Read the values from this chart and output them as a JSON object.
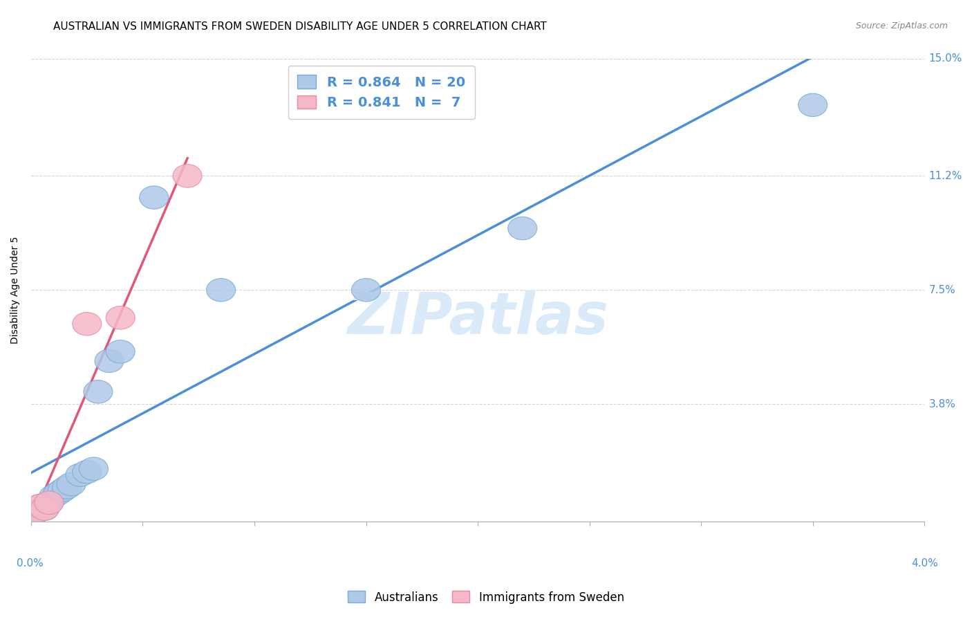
{
  "title": "AUSTRALIAN VS IMMIGRANTS FROM SWEDEN DISABILITY AGE UNDER 5 CORRELATION CHART",
  "source": "Source: ZipAtlas.com",
  "ylabel": "Disability Age Under 5",
  "y_ticks_labels": [
    "",
    "3.8%",
    "7.5%",
    "11.2%",
    "15.0%"
  ],
  "y_ticks_values": [
    0.0,
    3.8,
    7.5,
    11.2,
    15.0
  ],
  "xlim": [
    0.0,
    4.0
  ],
  "ylim": [
    0.0,
    15.0
  ],
  "watermark": "ZIPatlas",
  "legend_entries": [
    {
      "label": "Australians",
      "R": 0.864,
      "N": 20,
      "color": "#a8c4e0"
    },
    {
      "label": "Immigrants from Sweden",
      "R": 0.841,
      "N": 7,
      "color": "#f4a8b8"
    }
  ],
  "aus_points": [
    [
      0.02,
      0.3
    ],
    [
      0.04,
      0.5
    ],
    [
      0.06,
      0.4
    ],
    [
      0.08,
      0.6
    ],
    [
      0.1,
      0.8
    ],
    [
      0.12,
      0.9
    ],
    [
      0.14,
      1.0
    ],
    [
      0.16,
      1.1
    ],
    [
      0.18,
      1.2
    ],
    [
      0.22,
      1.5
    ],
    [
      0.25,
      1.6
    ],
    [
      0.28,
      1.7
    ],
    [
      0.3,
      4.2
    ],
    [
      0.35,
      5.2
    ],
    [
      0.4,
      5.5
    ],
    [
      0.55,
      10.5
    ],
    [
      0.85,
      7.5
    ],
    [
      1.5,
      7.5
    ],
    [
      2.2,
      9.5
    ],
    [
      3.5,
      13.5
    ]
  ],
  "swe_points": [
    [
      0.02,
      0.3
    ],
    [
      0.04,
      0.5
    ],
    [
      0.06,
      0.4
    ],
    [
      0.08,
      0.6
    ],
    [
      0.25,
      6.4
    ],
    [
      0.4,
      6.6
    ],
    [
      0.7,
      11.2
    ]
  ],
  "aus_line_color": "#4a90d9",
  "swe_line_color": "#e05878",
  "aus_scatter_facecolor": "#aec8e8",
  "aus_scatter_edgecolor": "#7aacd4",
  "swe_scatter_facecolor": "#f5b8c8",
  "swe_scatter_edgecolor": "#e88aa0",
  "grid_color": "#d0d0d0",
  "background_color": "#ffffff",
  "title_fontsize": 11,
  "source_fontsize": 9,
  "axis_label_fontsize": 10,
  "tick_label_color": "#4a90d9",
  "watermark_color": "#daeaf8",
  "watermark_fontsize": 60
}
